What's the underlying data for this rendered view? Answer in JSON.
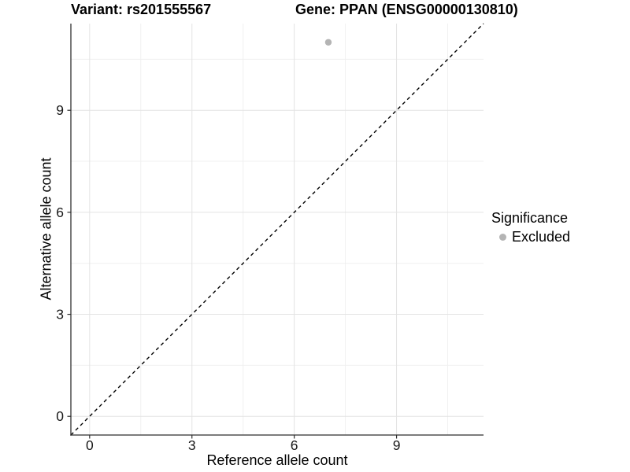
{
  "header": {
    "title_left": "Variant: rs201555567",
    "title_right": "Gene: PPAN (ENSG00000130810)"
  },
  "chart_data": {
    "type": "scatter",
    "title": "Variant: rs201555567    Gene: PPAN (ENSG00000130810)",
    "xlabel": "Reference allele count",
    "ylabel": "Alternative allele count",
    "xlim": [
      -0.55,
      11.55
    ],
    "ylim": [
      -0.55,
      11.55
    ],
    "x_ticks": [
      0,
      3,
      6,
      9
    ],
    "y_ticks": [
      0,
      3,
      6,
      9
    ],
    "x_minor_ticks": [
      1.5,
      4.5,
      7.5,
      10.5
    ],
    "y_minor_ticks": [
      1.5,
      4.5,
      7.5,
      10.5
    ],
    "grid": "major+minor",
    "series": [
      {
        "name": "Excluded",
        "color": "#b4b4b4",
        "points": [
          {
            "x": 7,
            "y": 11
          }
        ]
      }
    ],
    "reference_line": {
      "shape": "y=x diagonal",
      "style": "dashed",
      "color": "#000000",
      "from": [
        -0.55,
        -0.55
      ],
      "to": [
        11.55,
        11.55
      ]
    },
    "legend": {
      "title": "Significance",
      "position": "right",
      "items": [
        {
          "label": "Excluded",
          "color": "#b4b4b4"
        }
      ]
    }
  },
  "style": {
    "background": "#ffffff",
    "grid_major_color": "#e3e3e3",
    "grid_minor_color": "#f0f0f0",
    "axis_color": "#2f2f2f",
    "tick_mark_color": "#2f2f2f",
    "tick_label_color": "#1a1a1a",
    "point_radius": 4.2
  }
}
